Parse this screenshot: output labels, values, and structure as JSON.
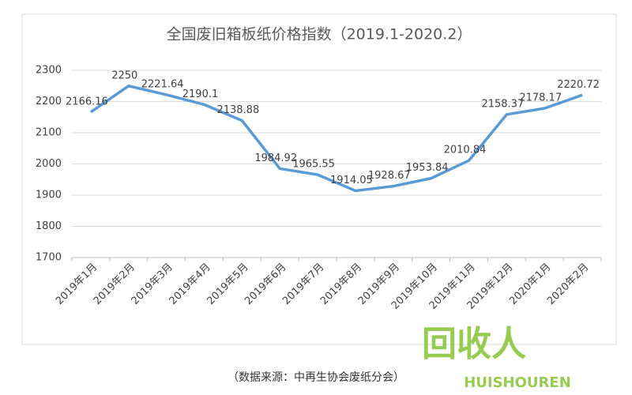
{
  "chart_data": {
    "type": "line",
    "title": "全国废旧箱板纸价格指数（2019.1-2020.2）",
    "categories": [
      "2019年1月",
      "2019年2月",
      "2019年3月",
      "2019年4月",
      "2019年5月",
      "2019年6月",
      "2019年7月",
      "2019年8月",
      "2019年9月",
      "2019年10月",
      "2019年11月",
      "2019年12月",
      "2020年1月",
      "2020年2月"
    ],
    "series": [
      {
        "name": "全国废旧箱板纸价格指数",
        "color": "#5b9bd5",
        "values": [
          2166.16,
          2250,
          2221.64,
          2190.1,
          2138.88,
          1984.92,
          1965.55,
          1914.05,
          1928.67,
          1953.84,
          2010.84,
          2158.37,
          2178.17,
          2220.72
        ]
      }
    ],
    "ylim": [
      1700,
      2300
    ],
    "yticks": [
      1700,
      1800,
      1900,
      2000,
      2100,
      2200,
      2300
    ],
    "grid": true,
    "source": "（数据来源：中再生协会废纸分会）",
    "watermark": {
      "logo": "回收人",
      "text": "HUISHOUREN"
    }
  }
}
